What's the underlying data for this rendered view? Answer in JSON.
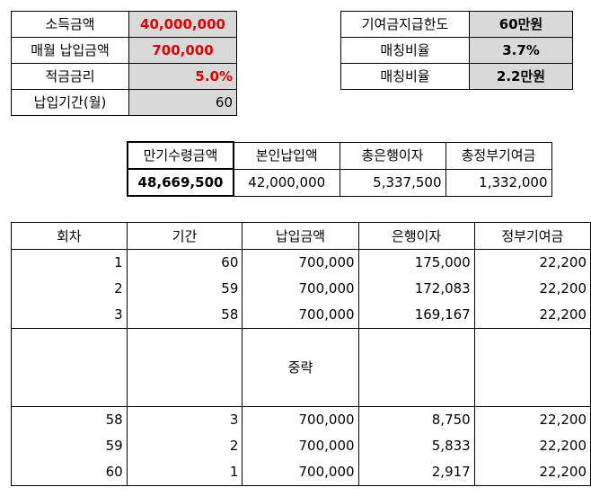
{
  "inputs": {
    "income_label": "소득금액",
    "income_value": "40,000,000",
    "monthly_label": "매월 납입금액",
    "monthly_value": "700,000",
    "rate_label": "적금금리",
    "rate_value": "5.0%",
    "period_label": "납입기간(월)",
    "period_value": "60"
  },
  "limits": {
    "limit_label": "기여금지급한도",
    "limit_value": "60만원",
    "ratio_label": "매칭비율",
    "ratio_value": "3.7%",
    "ratio2_label": "매칭비율",
    "ratio2_value": "2.2만원"
  },
  "summary": {
    "headers": [
      "만기수령금액",
      "본인납입액",
      "총은행이자",
      "총정부기여금"
    ],
    "values": [
      "48,669,500",
      "42,000,000",
      "5,337,500",
      "1,332,000"
    ]
  },
  "detail": {
    "headers": [
      "회차",
      "기간",
      "납입금액",
      "은행이자",
      "정부기여금"
    ],
    "top_rows": [
      [
        "1",
        "60",
        "700,000",
        "175,000",
        "22,200"
      ],
      [
        "2",
        "59",
        "700,000",
        "172,083",
        "22,200"
      ],
      [
        "3",
        "58",
        "700,000",
        "169,167",
        "22,200"
      ]
    ],
    "omitted_label": "중략",
    "bottom_rows": [
      [
        "58",
        "3",
        "700,000",
        "8,750",
        "22,200"
      ],
      [
        "59",
        "2",
        "700,000",
        "5,833",
        "22,200"
      ],
      [
        "60",
        "1",
        "700,000",
        "2,917",
        "22,200"
      ]
    ]
  }
}
